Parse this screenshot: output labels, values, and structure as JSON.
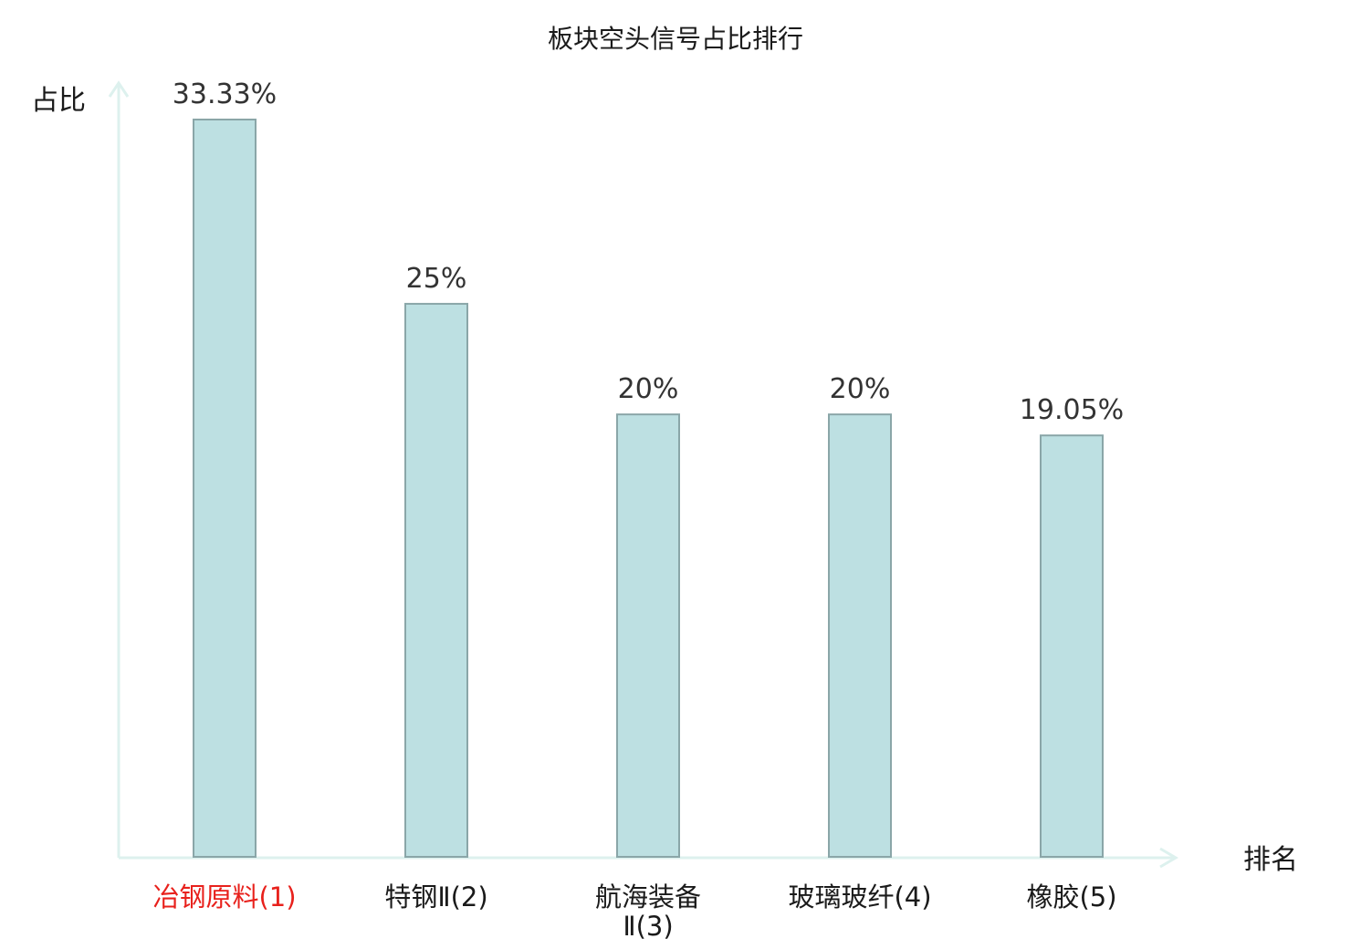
{
  "chart_data": {
    "type": "bar",
    "title": "板块空头信号占比排行",
    "xlabel": "排名",
    "ylabel": "占比",
    "categories": [
      {
        "lines": [
          "冶钢原料(1)"
        ],
        "color": "#e8211c"
      },
      {
        "lines": [
          "特钢Ⅱ(2)"
        ],
        "color": "#1a1a1a"
      },
      {
        "lines": [
          "航海装备",
          "Ⅱ(3)"
        ],
        "color": "#1a1a1a"
      },
      {
        "lines": [
          "玻璃玻纤(4)"
        ],
        "color": "#1a1a1a"
      },
      {
        "lines": [
          "橡胶(5)"
        ],
        "color": "#1a1a1a"
      }
    ],
    "values": [
      33.33,
      25,
      20,
      20,
      19.05
    ],
    "value_labels": [
      "33.33%",
      "25%",
      "20%",
      "20%",
      "19.05%"
    ],
    "ylim": [
      0,
      33.33
    ],
    "grid": false,
    "colors": {
      "bar_fill": "#bde0e2",
      "bar_stroke": "#8aa6a8",
      "axis": "#ddf1ee",
      "highlight": "#e8211c"
    }
  }
}
